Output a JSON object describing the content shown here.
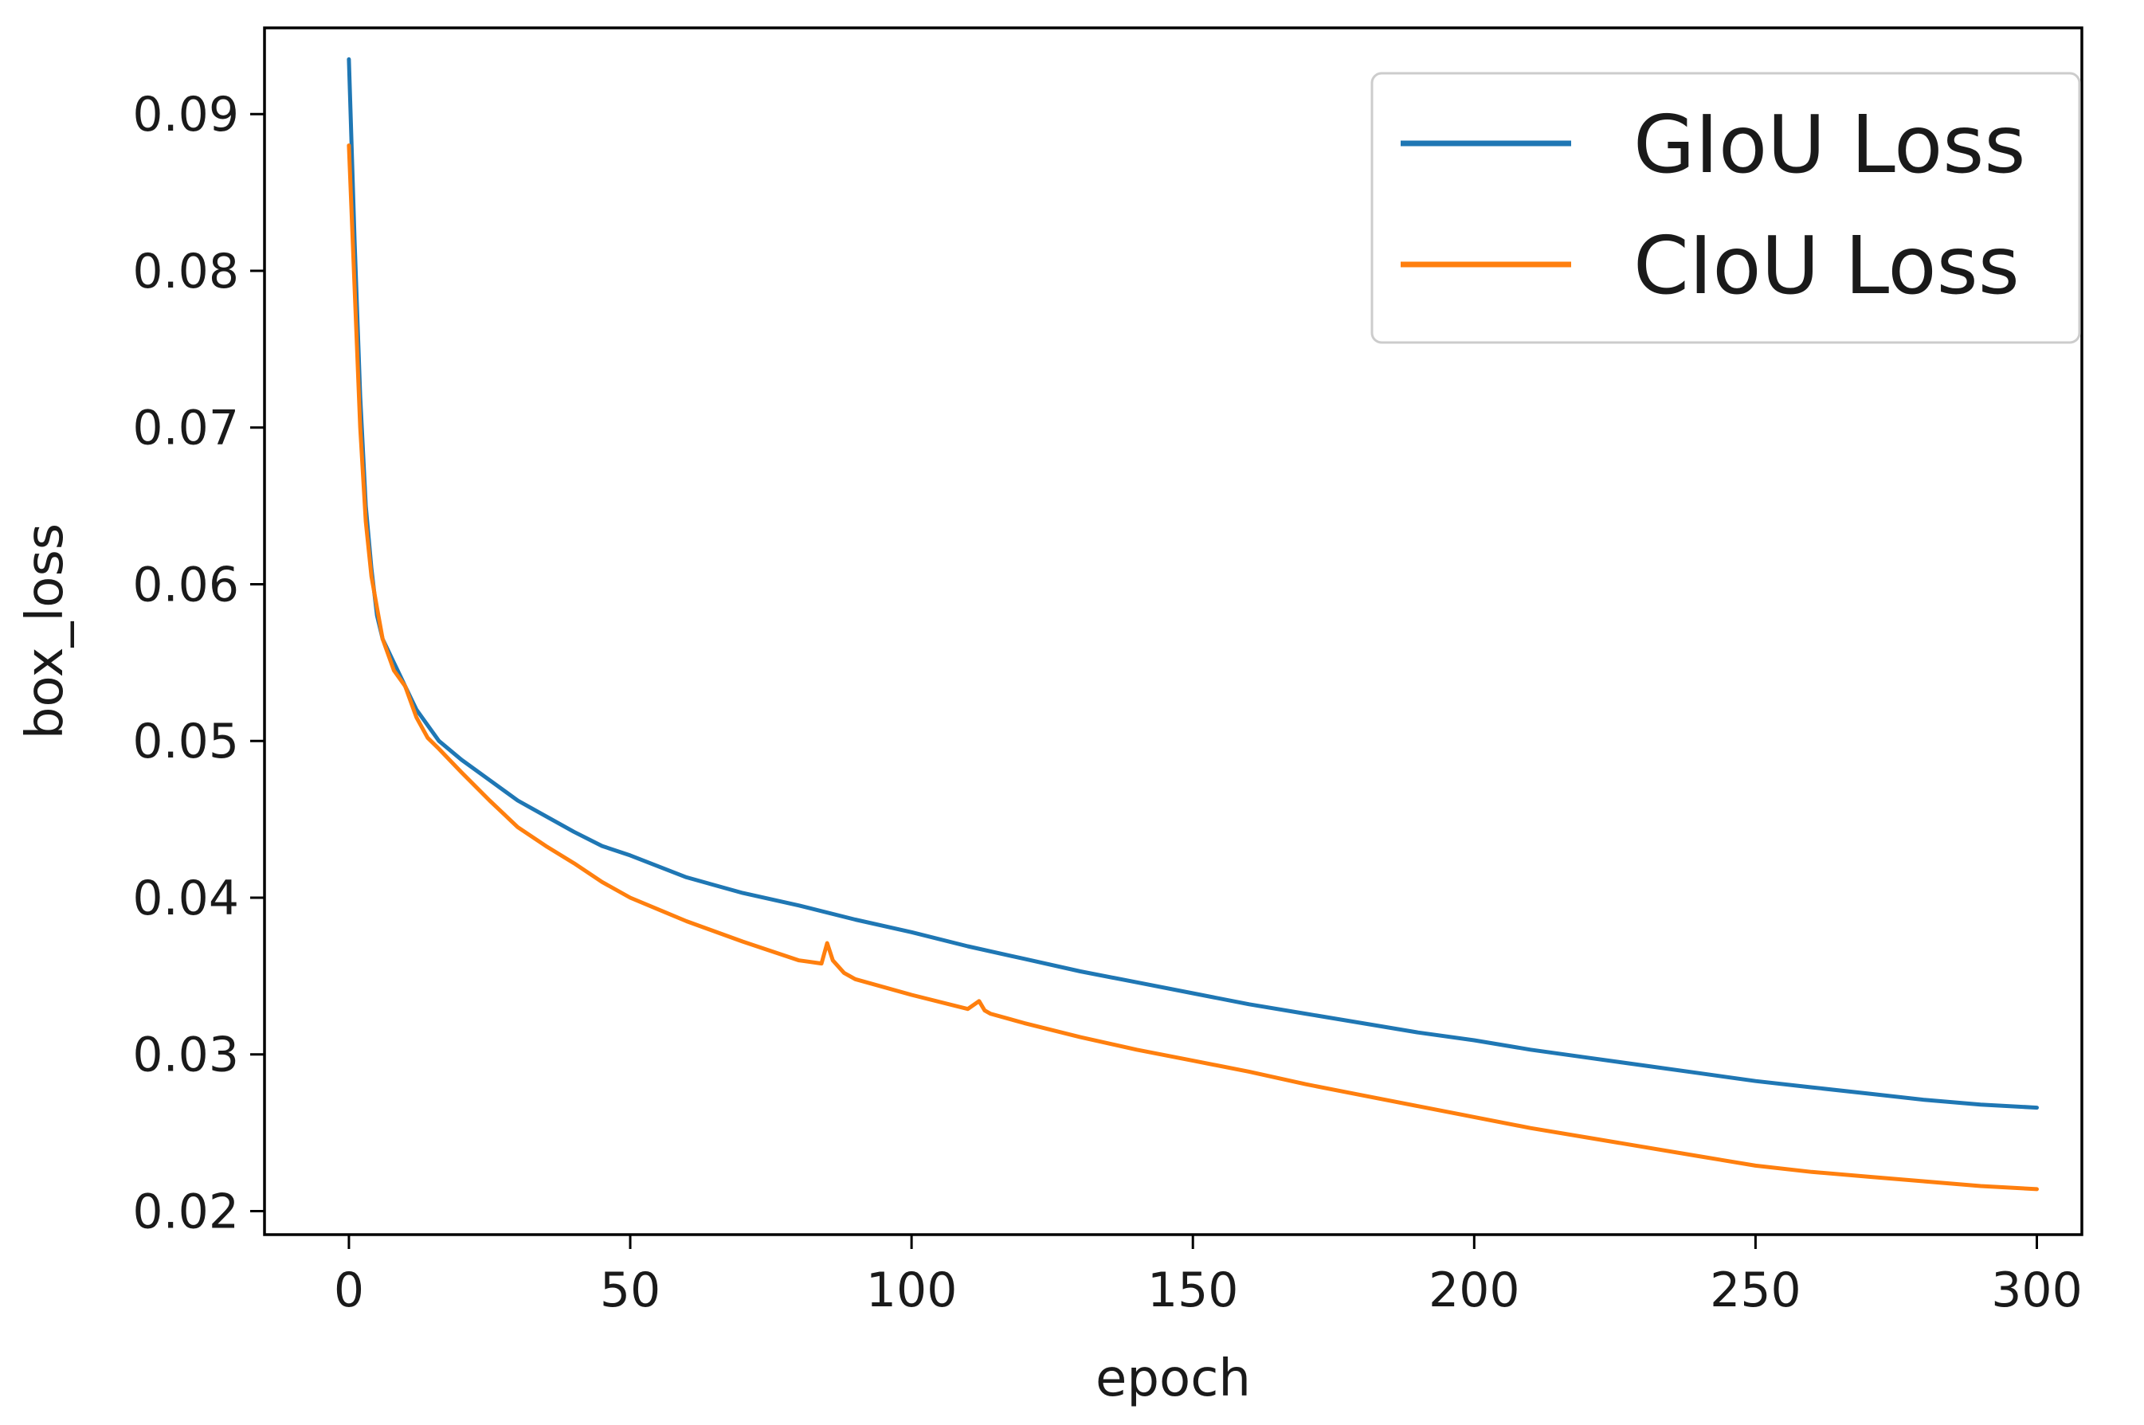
{
  "chart_data": {
    "type": "line",
    "title": "",
    "xlabel": "epoch",
    "ylabel": "box_loss",
    "xlim": [
      -15,
      308
    ],
    "ylim": [
      0.0185,
      0.0955
    ],
    "x_ticks": [
      0,
      50,
      100,
      150,
      200,
      250,
      300
    ],
    "x_tick_labels": [
      "0",
      "50",
      "100",
      "150",
      "200",
      "250",
      "300"
    ],
    "y_ticks": [
      0.02,
      0.03,
      0.04,
      0.05,
      0.06,
      0.07,
      0.08,
      0.09
    ],
    "y_tick_labels": [
      "0.02",
      "0.03",
      "0.04",
      "0.05",
      "0.06",
      "0.07",
      "0.08",
      "0.09"
    ],
    "grid": false,
    "legend_position": "top-right",
    "series": [
      {
        "name": "GIoU Loss",
        "color": "#1f77b4",
        "x": [
          0,
          1,
          2,
          3,
          4,
          5,
          6,
          8,
          10,
          12,
          14,
          16,
          20,
          25,
          30,
          35,
          40,
          45,
          50,
          60,
          70,
          80,
          90,
          100,
          110,
          120,
          130,
          140,
          150,
          160,
          170,
          180,
          190,
          200,
          210,
          220,
          230,
          240,
          250,
          260,
          270,
          280,
          290,
          300
        ],
        "y": [
          0.0935,
          0.082,
          0.072,
          0.065,
          0.061,
          0.058,
          0.0565,
          0.055,
          0.0535,
          0.052,
          0.051,
          0.05,
          0.0488,
          0.0475,
          0.0462,
          0.0452,
          0.0442,
          0.0433,
          0.0427,
          0.0413,
          0.0403,
          0.0395,
          0.0386,
          0.0378,
          0.0369,
          0.0361,
          0.0353,
          0.0346,
          0.0339,
          0.0332,
          0.0326,
          0.032,
          0.0314,
          0.0309,
          0.0303,
          0.0298,
          0.0293,
          0.0288,
          0.0283,
          0.0279,
          0.0275,
          0.0271,
          0.0268,
          0.0266
        ]
      },
      {
        "name": "CIoU Loss",
        "color": "#ff7f0e",
        "x": [
          0,
          1,
          2,
          3,
          4,
          5,
          6,
          8,
          10,
          12,
          14,
          16,
          20,
          25,
          30,
          35,
          40,
          45,
          50,
          60,
          70,
          80,
          84,
          85,
          86,
          88,
          90,
          100,
          110,
          112,
          113,
          114,
          120,
          130,
          140,
          150,
          160,
          170,
          180,
          190,
          200,
          210,
          220,
          230,
          240,
          250,
          260,
          270,
          280,
          290,
          300
        ],
        "y": [
          0.088,
          0.079,
          0.07,
          0.064,
          0.0605,
          0.0585,
          0.0565,
          0.0545,
          0.0535,
          0.0515,
          0.0502,
          0.0495,
          0.048,
          0.0462,
          0.0445,
          0.0433,
          0.0422,
          0.041,
          0.04,
          0.0385,
          0.0372,
          0.036,
          0.0358,
          0.0371,
          0.036,
          0.0352,
          0.0348,
          0.0338,
          0.0329,
          0.0334,
          0.0328,
          0.0326,
          0.032,
          0.0311,
          0.0303,
          0.0296,
          0.0289,
          0.0281,
          0.0274,
          0.0267,
          0.026,
          0.0253,
          0.0247,
          0.0241,
          0.0235,
          0.0229,
          0.0225,
          0.0222,
          0.0219,
          0.0216,
          0.0214
        ]
      }
    ]
  }
}
